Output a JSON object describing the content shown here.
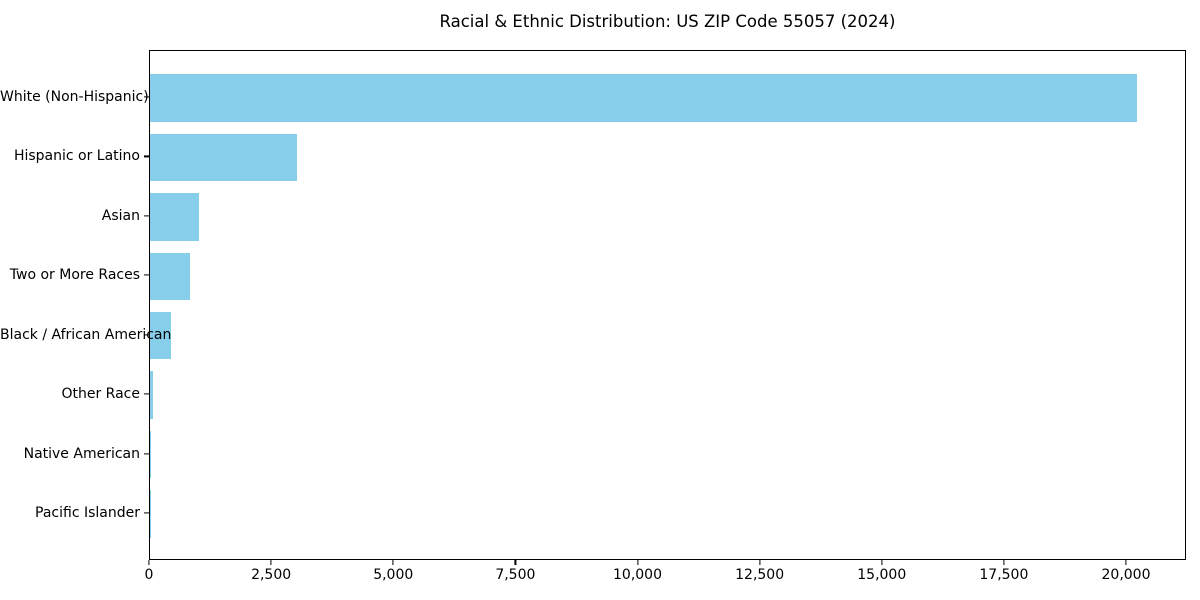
{
  "chart_data": {
    "type": "bar",
    "orientation": "horizontal",
    "title": "Racial & Ethnic Distribution: US ZIP Code 55057 (2024)",
    "categories": [
      "White (Non-Hispanic)",
      "Hispanic or Latino",
      "Asian",
      "Two or More Races",
      "Black / African American",
      "Other Race",
      "Native American",
      "Pacific Islander"
    ],
    "values": [
      20200,
      3000,
      1000,
      810,
      440,
      70,
      25,
      5
    ],
    "xlabel": "",
    "ylabel": "",
    "xlim": [
      0,
      21228
    ],
    "x_ticks": [
      0,
      2500,
      5000,
      7500,
      10000,
      12500,
      15000,
      17500,
      20000
    ],
    "x_tick_labels": [
      "0",
      "2,500",
      "5,000",
      "7,500",
      "10,000",
      "12,500",
      "15,000",
      "17,500",
      "20,000"
    ],
    "bar_color": "#87ceeb",
    "spine_color": "#000000",
    "background": "#ffffff",
    "grid": false,
    "legend": null
  }
}
